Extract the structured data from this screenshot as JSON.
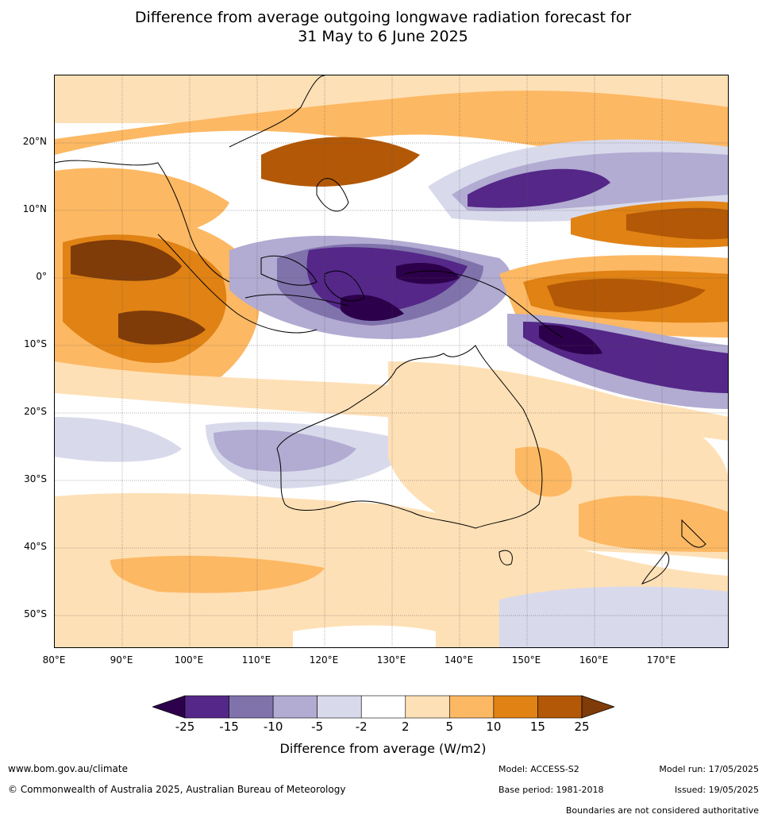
{
  "title_line1": "Difference from average outgoing longwave radiation forecast for",
  "title_line2": "31 May to 6 June 2025",
  "lat_labels": [
    "20°N",
    "10°N",
    "0°",
    "10°S",
    "20°S",
    "30°S",
    "40°S",
    "50°S"
  ],
  "lon_labels": [
    "80°E",
    "90°E",
    "100°E",
    "110°E",
    "120°E",
    "130°E",
    "140°E",
    "150°E",
    "160°E",
    "170°E"
  ],
  "colorbar": {
    "title": "Difference from average (W/m2)",
    "ticks": [
      "-25",
      "-15",
      "-10",
      "-5",
      "-2",
      "2",
      "5",
      "10",
      "15",
      "25"
    ],
    "colors": [
      "#2d004b",
      "#542788",
      "#8073ac",
      "#b2abd2",
      "#d8daeb",
      "#ffffff",
      "#fee0b6",
      "#fdb863",
      "#e08214",
      "#b35806",
      "#7f3b08"
    ]
  },
  "footer": {
    "website": "www.bom.gov.au/climate",
    "copyright": "© Commonwealth of Australia 2025, Australian Bureau of Meteorology",
    "model": "Model: ACCESS-S2",
    "base_period": "Base period: 1981-2018",
    "model_run": "Model run: 17/05/2025",
    "issued": "Issued: 19/05/2025",
    "disclaimer": "Boundaries are not considered authoritative"
  }
}
